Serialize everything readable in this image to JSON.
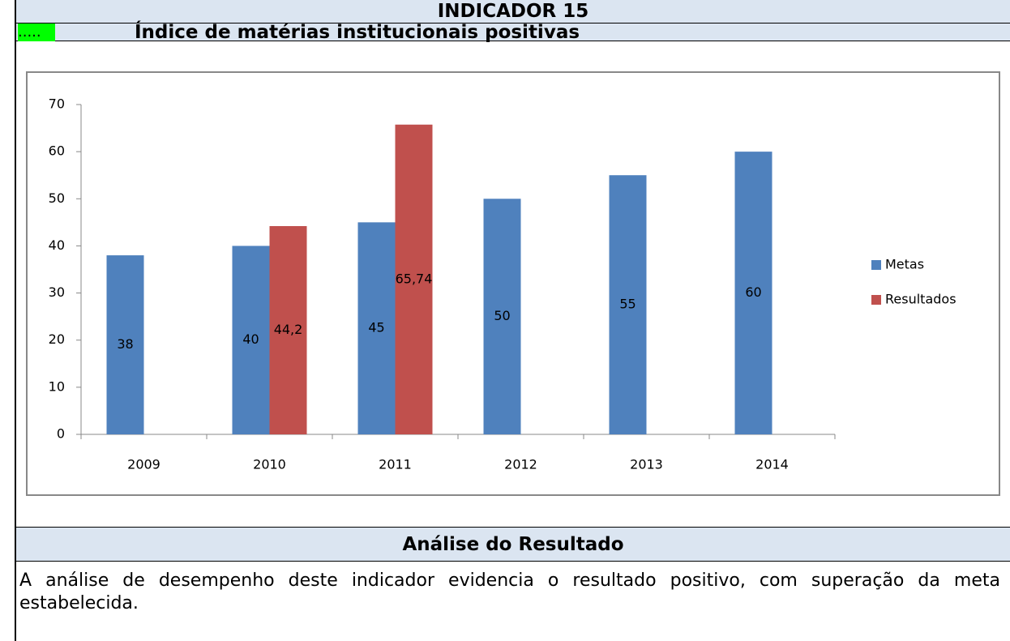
{
  "header": {
    "title": "INDICADOR 15",
    "marker": ".....",
    "subtitle": "Índice de matérias institucionais positivas"
  },
  "chart_data": {
    "type": "bar",
    "categories": [
      "2009",
      "2010",
      "2011",
      "2012",
      "2013",
      "2014"
    ],
    "series": [
      {
        "name": "Metas",
        "color": "#4f81bd",
        "values": [
          38,
          40,
          45,
          50,
          55,
          60
        ]
      },
      {
        "name": "Resultados",
        "color": "#c0504d",
        "values": [
          null,
          44.2,
          65.74,
          null,
          null,
          null
        ],
        "value_labels": [
          null,
          "44,2",
          "65,74",
          null,
          null,
          null
        ]
      }
    ],
    "ylim": [
      0,
      70
    ],
    "yticks": [
      0,
      10,
      20,
      30,
      40,
      50,
      60,
      70
    ],
    "grid": false,
    "legend": "right"
  },
  "analysis": {
    "heading": "Análise do Resultado",
    "text": "A análise de desempenho deste indicador evidencia o resultado positivo, com superação da meta estabelecida."
  }
}
